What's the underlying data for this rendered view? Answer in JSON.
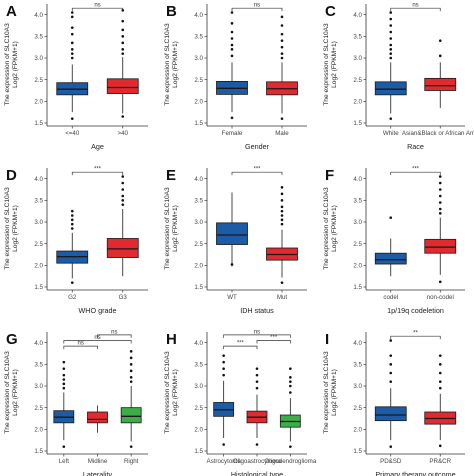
{
  "colors": {
    "blue": "#1c5ba6",
    "red": "#e02a2f",
    "green": "#3cae47",
    "outline": "#1a1a1a"
  },
  "chart_data": [
    {
      "panel": "A",
      "type": "boxplot",
      "xlabel": "Age",
      "ylabel": "The expression of SLC10A3",
      "ylabel2": "Log2 (FPKM+1)",
      "ylim": [
        1.5,
        4.2
      ],
      "yticks": [
        "1.5",
        "2.0",
        "2.5",
        "3.0",
        "3.5",
        "4.0"
      ],
      "categories": [
        {
          "label": "<=40",
          "color": "#1c5ba6",
          "min": 1.75,
          "q1": 2.15,
          "median": 2.28,
          "q3": 2.43,
          "max": 2.85,
          "outliers": [
            3.0,
            3.1,
            3.2,
            3.35,
            3.55,
            3.7,
            3.95,
            4.05,
            1.6
          ]
        },
        {
          "label": ">40",
          "color": "#e02a2f",
          "min": 1.72,
          "q1": 2.18,
          "median": 2.32,
          "q3": 2.52,
          "max": 3.02,
          "outliers": [
            3.1,
            3.2,
            3.35,
            3.5,
            3.65,
            3.85,
            4.1,
            1.65
          ]
        }
      ],
      "brackets": [
        {
          "from": 0,
          "to": 1,
          "label": "ns",
          "y": 4.15
        }
      ]
    },
    {
      "panel": "B",
      "type": "boxplot",
      "xlabel": "Gender",
      "ylabel": "The expression of SLC10A3",
      "ylabel2": "Log2 (FPKM+1)",
      "ylim": [
        1.5,
        4.2
      ],
      "yticks": [
        "1.5",
        "2.0",
        "2.5",
        "3.0",
        "3.5",
        "4.0"
      ],
      "categories": [
        {
          "label": "Female",
          "color": "#1c5ba6",
          "min": 1.75,
          "q1": 2.16,
          "median": 2.3,
          "q3": 2.46,
          "max": 2.9,
          "outliers": [
            3.05,
            3.2,
            3.3,
            3.45,
            3.6,
            3.8,
            4.05,
            1.62
          ]
        },
        {
          "label": "Male",
          "color": "#e02a2f",
          "min": 1.72,
          "q1": 2.15,
          "median": 2.29,
          "q3": 2.45,
          "max": 2.9,
          "outliers": [
            3.0,
            3.1,
            3.25,
            3.4,
            3.55,
            3.75,
            3.95,
            1.6
          ]
        }
      ],
      "brackets": [
        {
          "from": 0,
          "to": 1,
          "label": "ns",
          "y": 4.15
        }
      ]
    },
    {
      "panel": "C",
      "type": "boxplot",
      "xlabel": "Race",
      "ylabel": "The expression of SLC10A3",
      "ylabel2": "Log2 (FPKM+1)",
      "ylim": [
        1.5,
        4.2
      ],
      "yticks": [
        "1.5",
        "2.0",
        "2.5",
        "3.0",
        "3.5",
        "4.0"
      ],
      "categories": [
        {
          "label": "White",
          "color": "#1c5ba6",
          "min": 1.72,
          "q1": 2.15,
          "median": 2.28,
          "q3": 2.45,
          "max": 2.9,
          "outliers": [
            3.0,
            3.1,
            3.2,
            3.3,
            3.45,
            3.6,
            3.75,
            3.9,
            4.05,
            1.6
          ]
        },
        {
          "label": "Asian&Black or African Ame",
          "color": "#e02a2f",
          "min": 1.85,
          "q1": 2.25,
          "median": 2.36,
          "q3": 2.53,
          "max": 2.9,
          "outliers": [
            3.05,
            3.4
          ]
        }
      ],
      "brackets": [
        {
          "from": 0,
          "to": 1,
          "label": "ns",
          "y": 4.15
        }
      ]
    },
    {
      "panel": "D",
      "type": "boxplot",
      "xlabel": "WHO grade",
      "ylabel": "The expression of SLC10A3",
      "ylabel2": "Log2 (FPKM+1)",
      "ylim": [
        1.5,
        4.2
      ],
      "yticks": [
        "1.5",
        "2.0",
        "2.5",
        "3.0",
        "3.5",
        "4.0"
      ],
      "categories": [
        {
          "label": "G2",
          "color": "#1c5ba6",
          "min": 1.7,
          "q1": 2.05,
          "median": 2.2,
          "q3": 2.33,
          "max": 2.75,
          "outliers": [
            2.85,
            2.95,
            3.05,
            3.15,
            3.25,
            1.6
          ]
        },
        {
          "label": "G3",
          "color": "#e02a2f",
          "min": 1.75,
          "q1": 2.18,
          "median": 2.38,
          "q3": 2.62,
          "max": 3.3,
          "outliers": [
            3.4,
            3.5,
            3.6,
            3.75,
            3.9,
            4.05
          ]
        }
      ],
      "brackets": [
        {
          "from": 0,
          "to": 1,
          "label": "***",
          "y": 4.15
        }
      ]
    },
    {
      "panel": "E",
      "type": "boxplot",
      "xlabel": "IDH status",
      "ylabel": "The expression of SLC10A3",
      "ylabel2": "Log2 (FPKM+1)",
      "ylim": [
        1.5,
        4.2
      ],
      "yticks": [
        "1.5",
        "2.0",
        "2.5",
        "3.0",
        "3.5",
        "4.0"
      ],
      "categories": [
        {
          "label": "WT",
          "color": "#1c5ba6",
          "min": 1.98,
          "q1": 2.48,
          "median": 2.7,
          "q3": 2.98,
          "max": 3.68,
          "outliers": [
            2.02
          ]
        },
        {
          "label": "Mut",
          "color": "#e02a2f",
          "min": 1.72,
          "q1": 2.12,
          "median": 2.25,
          "q3": 2.4,
          "max": 2.82,
          "outliers": [
            2.95,
            3.05,
            3.15,
            3.25,
            3.35,
            3.5,
            3.65,
            3.8,
            1.6
          ]
        }
      ],
      "brackets": [
        {
          "from": 0,
          "to": 1,
          "label": "***",
          "y": 4.15
        }
      ]
    },
    {
      "panel": "F",
      "type": "boxplot",
      "xlabel": "1p/19q codeletion",
      "ylabel": "The expression of SLC10A3",
      "ylabel2": "Log2 (FPKM+1)",
      "ylim": [
        1.5,
        4.2
      ],
      "yticks": [
        "1.5",
        "2.0",
        "2.5",
        "3.0",
        "3.5",
        "4.0"
      ],
      "categories": [
        {
          "label": "codel",
          "color": "#1c5ba6",
          "min": 1.75,
          "q1": 2.03,
          "median": 2.13,
          "q3": 2.28,
          "max": 2.62,
          "outliers": [
            3.1
          ]
        },
        {
          "label": "non-codel",
          "color": "#e02a2f",
          "min": 1.78,
          "q1": 2.28,
          "median": 2.42,
          "q3": 2.6,
          "max": 3.1,
          "outliers": [
            3.2,
            3.3,
            3.45,
            3.6,
            3.75,
            3.9,
            4.05,
            1.62
          ]
        }
      ],
      "brackets": [
        {
          "from": 0,
          "to": 1,
          "label": "***",
          "y": 4.15
        }
      ]
    },
    {
      "panel": "G",
      "type": "boxplot",
      "xlabel": "Laterality",
      "ylabel": "The expression of SLC10A3",
      "ylabel2": "Log2 (FPKM+1)",
      "ylim": [
        1.5,
        4.2
      ],
      "yticks": [
        "1.5",
        "2.0",
        "2.5",
        "3.0",
        "3.5",
        "4.0"
      ],
      "categories": [
        {
          "label": "Left",
          "color": "#1c5ba6",
          "min": 1.75,
          "q1": 2.15,
          "median": 2.28,
          "q3": 2.43,
          "max": 2.85,
          "outliers": [
            2.95,
            3.05,
            3.15,
            3.25,
            3.4,
            3.55,
            1.6
          ]
        },
        {
          "label": "Midline",
          "color": "#e02a2f",
          "min": 1.92,
          "q1": 2.15,
          "median": 2.23,
          "q3": 2.4,
          "max": 2.55,
          "outliers": []
        },
        {
          "label": "Right",
          "color": "#3cae47",
          "min": 1.72,
          "q1": 2.15,
          "median": 2.3,
          "q3": 2.5,
          "max": 3.0,
          "outliers": [
            3.1,
            3.2,
            3.35,
            3.5,
            3.65,
            3.8,
            1.6
          ]
        }
      ],
      "brackets": [
        {
          "from": 0,
          "to": 1,
          "label": "ns",
          "y": 3.92
        },
        {
          "from": 0,
          "to": 2,
          "label": "ns",
          "y": 4.05
        },
        {
          "from": 1,
          "to": 2,
          "label": "ns",
          "y": 4.18
        }
      ]
    },
    {
      "panel": "H",
      "type": "boxplot",
      "xlabel": "Histological type",
      "ylabel": "The expression of SLC10A3",
      "ylabel2": "Log2 (FPKM+1)",
      "ylim": [
        1.5,
        4.2
      ],
      "yticks": [
        "1.5",
        "2.0",
        "2.5",
        "3.0",
        "3.5",
        "4.0"
      ],
      "categories": [
        {
          "label": "Astrocytoma",
          "color": "#1c5ba6",
          "min": 1.8,
          "q1": 2.3,
          "median": 2.45,
          "q3": 2.62,
          "max": 3.12,
          "outliers": [
            3.25,
            3.4,
            3.55,
            3.7,
            1.65
          ]
        },
        {
          "label": "Oligoastrocytoma",
          "color": "#e02a2f",
          "min": 1.8,
          "q1": 2.15,
          "median": 2.28,
          "q3": 2.42,
          "max": 2.8,
          "outliers": [
            2.95,
            3.1,
            3.25,
            3.4,
            1.65
          ]
        },
        {
          "label": "Oligodendroglioma",
          "color": "#3cae47",
          "min": 1.72,
          "q1": 2.05,
          "median": 2.18,
          "q3": 2.33,
          "max": 2.72,
          "outliers": [
            2.85,
            3.0,
            3.1,
            3.2,
            3.4,
            1.6
          ]
        }
      ],
      "brackets": [
        {
          "from": 0,
          "to": 1,
          "label": "***",
          "y": 3.92
        },
        {
          "from": 1,
          "to": 2,
          "label": "***",
          "y": 4.05
        },
        {
          "from": 0,
          "to": 2,
          "label": "ns",
          "y": 4.18
        }
      ]
    },
    {
      "panel": "I",
      "type": "boxplot",
      "xlabel": "Primary therapy outcome",
      "ylabel": "The expression of SLC10A3",
      "ylabel2": "Log2 (FPKM+1)",
      "ylim": [
        1.5,
        4.2
      ],
      "yticks": [
        "1.5",
        "2.0",
        "2.5",
        "3.0",
        "3.5",
        "4.0"
      ],
      "categories": [
        {
          "label": "PD&SD",
          "color": "#1c5ba6",
          "min": 1.75,
          "q1": 2.2,
          "median": 2.33,
          "q3": 2.52,
          "max": 2.95,
          "outliers": [
            3.1,
            3.3,
            3.5,
            3.7,
            4.05,
            1.6
          ]
        },
        {
          "label": "PR&CR",
          "color": "#e02a2f",
          "min": 1.75,
          "q1": 2.12,
          "median": 2.25,
          "q3": 2.4,
          "max": 2.82,
          "outliers": [
            2.95,
            3.1,
            3.3,
            3.5,
            3.7,
            1.62
          ]
        }
      ],
      "brackets": [
        {
          "from": 0,
          "to": 1,
          "label": "**",
          "y": 4.15
        }
      ]
    }
  ]
}
